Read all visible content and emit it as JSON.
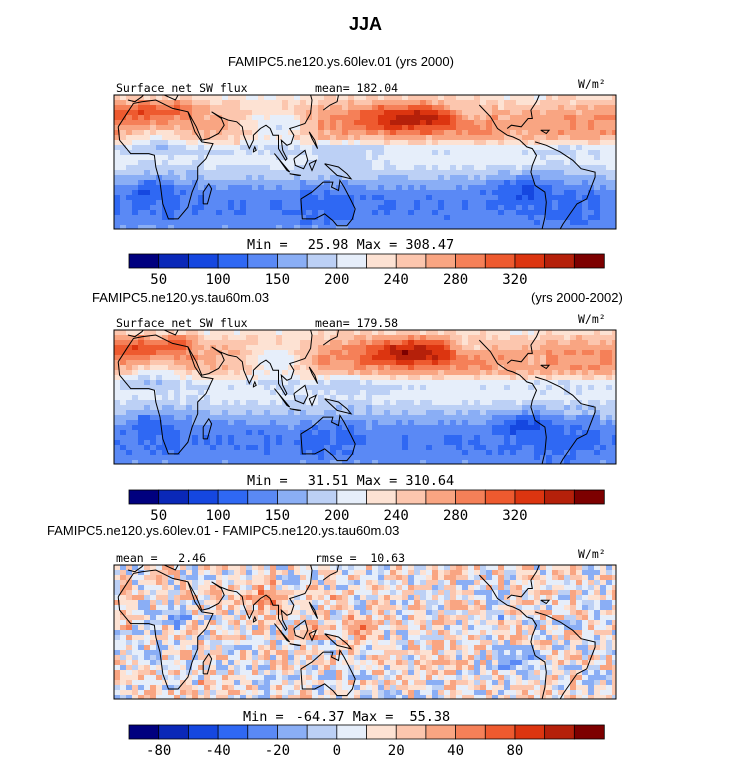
{
  "main_title": "JJA",
  "chart_data": [
    {
      "type": "heatmap",
      "case_label": "FAMIPC5.ne120.ys.60lev.01",
      "years": "(yrs 2000)",
      "left_label": "Surface net SW flux",
      "center_label": "mean= 182.04",
      "units": "W/m²",
      "min_text": "Min =",
      "min_value": "25.98",
      "max_text": "Max =",
      "max_value": "308.47",
      "colorbar_ticks": [
        "50",
        "100",
        "150",
        "200",
        "240",
        "280",
        "320"
      ],
      "field": "sw_abs",
      "mean": 182.04
    },
    {
      "type": "heatmap",
      "case_label": "FAMIPC5.ne120.ys.tau60m.03",
      "years": "(yrs 2000-2002)",
      "left_label": "Surface net SW flux",
      "center_label": "mean= 179.58",
      "units": "W/m²",
      "min_text": "Min =",
      "min_value": "31.51",
      "max_text": "Max =",
      "max_value": "310.64",
      "colorbar_ticks": [
        "50",
        "100",
        "150",
        "200",
        "240",
        "280",
        "320"
      ],
      "field": "sw_abs",
      "mean": 179.58
    },
    {
      "type": "heatmap",
      "case_label": "FAMIPC5.ne120.ys.60lev.01 - FAMIPC5.ne120.ys.tau60m.03",
      "left_label": "mean =   2.46",
      "center_label": "rmse =  10.63",
      "units": "W/m²",
      "min_text": "Min =",
      "min_value": "-64.37",
      "max_text": "Max =",
      "max_value": "55.38",
      "colorbar_ticks": [
        "-80",
        "-40",
        "-20",
        "0",
        "20",
        "40",
        "80"
      ],
      "field": "diff",
      "mean": 2.46
    }
  ],
  "palette": [
    "#00007f",
    "#0a28b8",
    "#1547e0",
    "#2f68f3",
    "#5a89f5",
    "#8aaef5",
    "#bcd0f5",
    "#e6eefa",
    "#fde2d3",
    "#fcc6ae",
    "#f9a582",
    "#f58058",
    "#ee5a2f",
    "#dc3510",
    "#b5200a",
    "#7d0000"
  ]
}
